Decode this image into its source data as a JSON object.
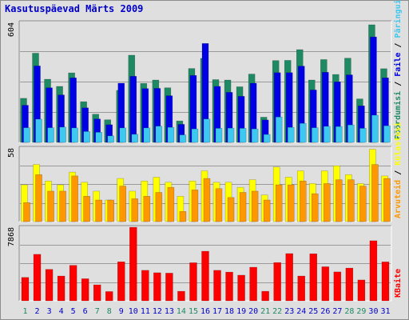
{
  "title": "Kasutuspäevad Märts 2009",
  "colors": {
    "pages": "#1e8a64",
    "files": "#0000e6",
    "hits": "#3cc8f0",
    "visits": "#ffff00",
    "sites": "#ff9800",
    "kbytes": "#ff0000",
    "weekend_day": "#1e8a64",
    "weekday": "#0000c8"
  },
  "chart_data": [
    {
      "type": "bar",
      "title": "",
      "ymax_label": "604",
      "ylim": [
        0,
        604
      ],
      "legend": [
        {
          "name": "Päringuid",
          "color": "#3cc8f0"
        },
        {
          "name": "Faile",
          "color": "#0000e6"
        },
        {
          "name": "Pöördumisi",
          "color": "#1e8a64"
        }
      ],
      "legend_separator": "/",
      "categories": [
        "1",
        "2",
        "3",
        "4",
        "5",
        "6",
        "7",
        "8",
        "9",
        "10",
        "11",
        "12",
        "13",
        "14",
        "15",
        "16",
        "17",
        "18",
        "19",
        "20",
        "21",
        "22",
        "23",
        "24",
        "25",
        "26",
        "27",
        "28",
        "29",
        "30",
        "31"
      ],
      "series": [
        {
          "name": "Pöördumisi",
          "values": [
            222,
            449,
            318,
            282,
            350,
            205,
            142,
            114,
            262,
            439,
            297,
            314,
            275,
            108,
            372,
            423,
            316,
            314,
            280,
            344,
            127,
            412,
            413,
            467,
            314,
            417,
            342,
            424,
            219,
            592,
            371
          ]
        },
        {
          "name": "Faile",
          "values": [
            187,
            385,
            275,
            239,
            325,
            174,
            118,
            89,
            298,
            333,
            271,
            272,
            235,
            91,
            337,
            498,
            282,
            252,
            232,
            298,
            113,
            351,
            351,
            384,
            264,
            353,
            305,
            340,
            184,
            531,
            325
          ]
        },
        {
          "name": "Päringuid",
          "values": [
            74,
            117,
            74,
            77,
            73,
            55,
            51,
            33,
            73,
            41,
            73,
            82,
            76,
            38,
            68,
            118,
            71,
            72,
            71,
            68,
            40,
            128,
            76,
            96,
            74,
            81,
            80,
            88,
            71,
            137,
            84
          ]
        }
      ]
    },
    {
      "type": "bar",
      "title": "",
      "ymax_label": "58",
      "ylim": [
        0,
        58
      ],
      "legend": [
        {
          "name": "Külastusi",
          "color": "#ffff00"
        },
        {
          "name": "Arvuteid",
          "color": "#ff9800"
        }
      ],
      "legend_separator": "/",
      "categories": [
        "1",
        "2",
        "3",
        "4",
        "5",
        "6",
        "7",
        "8",
        "9",
        "10",
        "11",
        "12",
        "13",
        "14",
        "15",
        "16",
        "17",
        "18",
        "19",
        "20",
        "21",
        "22",
        "23",
        "24",
        "25",
        "26",
        "27",
        "28",
        "29",
        "30",
        "31"
      ],
      "series": [
        {
          "name": "Külastusi",
          "values": [
            29,
            45,
            32,
            29,
            39,
            31,
            24,
            17,
            34,
            24,
            32,
            35,
            31,
            20,
            32,
            40,
            31,
            31,
            27,
            33,
            21,
            43,
            35,
            40,
            30,
            40,
            44,
            37,
            30,
            57,
            36
          ]
        },
        {
          "name": "Arvuteid",
          "values": [
            15,
            37,
            24,
            24,
            36,
            20,
            17,
            17,
            28,
            18,
            20,
            23,
            27,
            8,
            25,
            34,
            26,
            19,
            23,
            24,
            17,
            29,
            29,
            32,
            22,
            30,
            33,
            33,
            28,
            45,
            34
          ]
        }
      ]
    },
    {
      "type": "bar",
      "title": "",
      "ymax_label": "7868",
      "ylim": [
        0,
        7868
      ],
      "legend": [
        {
          "name": "KBaite",
          "color": "#ff0000"
        }
      ],
      "categories": [
        "1",
        "2",
        "3",
        "4",
        "5",
        "6",
        "7",
        "8",
        "9",
        "10",
        "11",
        "12",
        "13",
        "14",
        "15",
        "16",
        "17",
        "18",
        "19",
        "20",
        "21",
        "22",
        "23",
        "24",
        "25",
        "26",
        "27",
        "28",
        "29",
        "30",
        "31"
      ],
      "series": [
        {
          "name": "KBaite",
          "values": [
            2500,
            4970,
            3360,
            2650,
            3790,
            2360,
            1710,
            990,
            4170,
            7860,
            3260,
            3000,
            2960,
            1020,
            4070,
            5300,
            3260,
            3070,
            2740,
            3590,
            1020,
            4090,
            5050,
            2650,
            5030,
            3640,
            3090,
            3500,
            2230,
            6420,
            4160
          ]
        }
      ]
    }
  ],
  "x_labels": [
    "1",
    "2",
    "3",
    "4",
    "5",
    "6",
    "7",
    "8",
    "9",
    "10",
    "11",
    "12",
    "13",
    "14",
    "15",
    "16",
    "17",
    "18",
    "19",
    "20",
    "21",
    "22",
    "23",
    "24",
    "25",
    "26",
    "27",
    "28",
    "29",
    "30",
    "31"
  ],
  "weekend_days": [
    "1",
    "7",
    "8",
    "14",
    "15",
    "21",
    "22",
    "28",
    "29"
  ]
}
